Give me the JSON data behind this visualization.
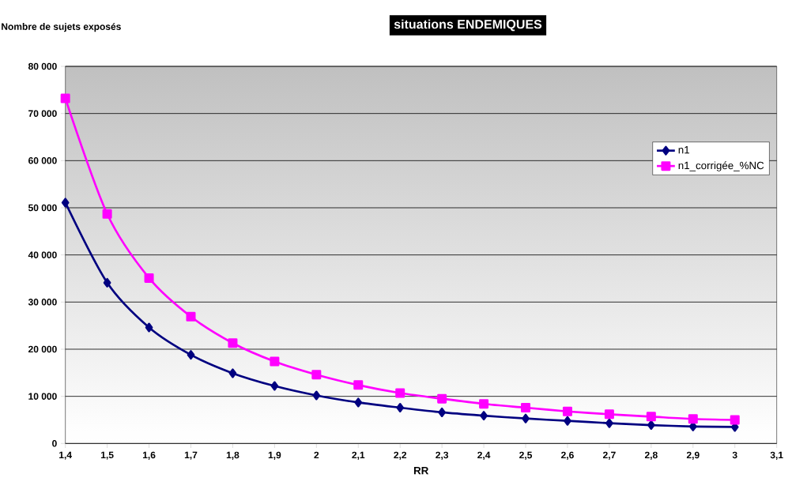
{
  "chart_data": {
    "type": "line",
    "title": "situations ENDEMIQUES",
    "xlabel": "RR",
    "ylabel": "Nombre de sujets exposés",
    "x": [
      1.4,
      1.5,
      1.6,
      1.7,
      1.8,
      1.9,
      2.0,
      2.1,
      2.2,
      2.3,
      2.4,
      2.5,
      2.6,
      2.7,
      2.8,
      2.9,
      3.0
    ],
    "series": [
      {
        "name": "n1",
        "color": "#000080",
        "marker": "diamond",
        "values": [
          51100,
          34100,
          24600,
          18800,
          14900,
          12200,
          10200,
          8700,
          7600,
          6600,
          5900,
          5300,
          4800,
          4300,
          3900,
          3600,
          3500
        ]
      },
      {
        "name": "n1_corrigée_%NC",
        "color": "#ff00ff",
        "marker": "square",
        "values": [
          73200,
          48700,
          35100,
          26900,
          21300,
          17400,
          14600,
          12400,
          10700,
          9500,
          8400,
          7600,
          6800,
          6200,
          5700,
          5200,
          5000
        ]
      }
    ],
    "xlim": [
      1.4,
      3.1
    ],
    "xticks": [
      {
        "value": 1.4,
        "label": "1,4"
      },
      {
        "value": 1.5,
        "label": "1,5"
      },
      {
        "value": 1.6,
        "label": "1,6"
      },
      {
        "value": 1.7,
        "label": "1,7"
      },
      {
        "value": 1.8,
        "label": "1,8"
      },
      {
        "value": 1.9,
        "label": "1,9"
      },
      2,
      {
        "value": 2.1,
        "label": "2,1"
      },
      {
        "value": 2.2,
        "label": "2,2"
      },
      {
        "value": 2.3,
        "label": "2,3"
      },
      {
        "value": 2.4,
        "label": "2,4"
      },
      {
        "value": 2.5,
        "label": "2,5"
      },
      {
        "value": 2.6,
        "label": "2,6"
      },
      {
        "value": 2.7,
        "label": "2,7"
      },
      {
        "value": 2.8,
        "label": "2,8"
      },
      {
        "value": 2.9,
        "label": "2,9"
      },
      3,
      {
        "value": 3.1,
        "label": "3,1"
      }
    ],
    "ylim": [
      0,
      80000
    ],
    "yticks": [
      0,
      {
        "value": 10000,
        "label": "10 000"
      },
      {
        "value": 20000,
        "label": "20 000"
      },
      {
        "value": 30000,
        "label": "30 000"
      },
      {
        "value": 40000,
        "label": "40 000"
      },
      {
        "value": 50000,
        "label": "50 000"
      },
      {
        "value": 60000,
        "label": "60 000"
      },
      {
        "value": 70000,
        "label": "70 000"
      },
      {
        "value": 80000,
        "label": "80 000"
      }
    ],
    "grid": "y",
    "legend": "top right",
    "line_style": "solid"
  }
}
